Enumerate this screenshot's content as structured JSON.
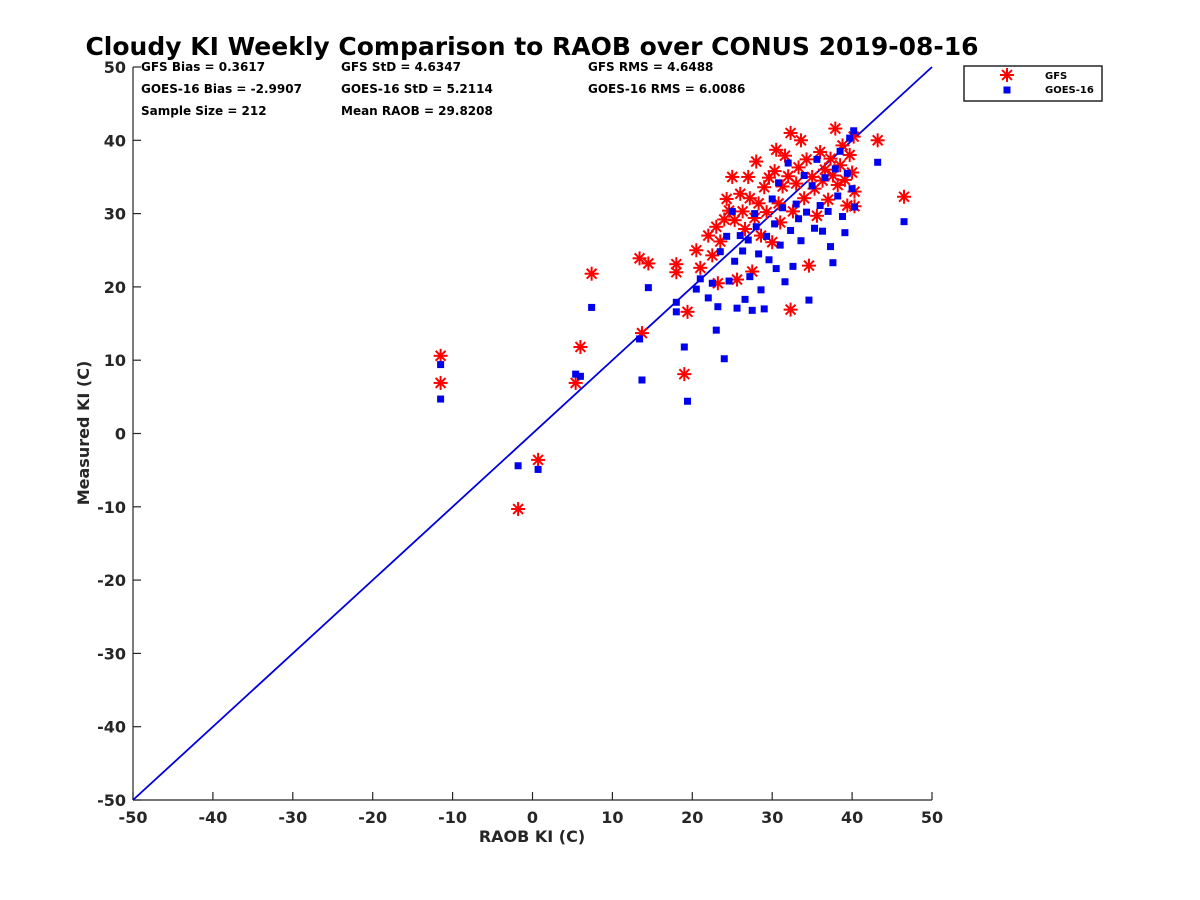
{
  "chart_data": {
    "type": "scatter",
    "title": "Cloudy KI Weekly Comparison to RAOB over CONUS 2019-08-16",
    "xlabel": "RAOB KI (C)",
    "ylabel": "Measured KI (C)",
    "xlim": [
      -50,
      50
    ],
    "ylim": [
      -50,
      50
    ],
    "xticks": [
      -50,
      -40,
      -30,
      -20,
      -10,
      0,
      10,
      20,
      30,
      40,
      50
    ],
    "yticks": [
      -50,
      -40,
      -30,
      -20,
      -10,
      0,
      10,
      20,
      30,
      40,
      50
    ],
    "grid": false,
    "legend_position": "outside top-right",
    "reference_line": {
      "x": [
        -50,
        50
      ],
      "y": [
        -50,
        50
      ],
      "color": "#0000dd"
    },
    "stats": [
      "GFS Bias = 0.3617",
      "GFS StD = 4.6347",
      "GFS RMS = 4.6488",
      "GOES-16 Bias = -2.9907",
      "GOES-16 StD = 5.2114",
      "GOES-16 RMS = 6.0086",
      "Sample Size = 212",
      "Mean RAOB = 29.8208"
    ],
    "series": [
      {
        "name": "GFS",
        "marker": "asterisk",
        "color": "#ff0000",
        "points": [
          [
            -11.5,
            10.6
          ],
          [
            -11.5,
            6.9
          ],
          [
            -1.8,
            -10.3
          ],
          [
            0.7,
            -3.6
          ],
          [
            5.4,
            6.9
          ],
          [
            6.0,
            11.8
          ],
          [
            7.4,
            21.8
          ],
          [
            13.4,
            23.9
          ],
          [
            13.7,
            13.7
          ],
          [
            14.5,
            23.2
          ],
          [
            18.0,
            23.1
          ],
          [
            18.0,
            22.0
          ],
          [
            19.0,
            8.1
          ],
          [
            19.4,
            16.6
          ],
          [
            20.5,
            25.0
          ],
          [
            21.0,
            22.6
          ],
          [
            22.0,
            27.0
          ],
          [
            22.5,
            24.3
          ],
          [
            23.0,
            28.2
          ],
          [
            23.2,
            20.5
          ],
          [
            23.5,
            26.2
          ],
          [
            24.0,
            29.2
          ],
          [
            24.3,
            32.0
          ],
          [
            24.6,
            30.4
          ],
          [
            25.0,
            35.0
          ],
          [
            25.3,
            29.1
          ],
          [
            25.6,
            21.0
          ],
          [
            26.0,
            32.7
          ],
          [
            26.3,
            30.3
          ],
          [
            26.6,
            27.9
          ],
          [
            27.0,
            35.0
          ],
          [
            27.2,
            32.1
          ],
          [
            27.5,
            22.1
          ],
          [
            27.8,
            29.4
          ],
          [
            28.0,
            37.1
          ],
          [
            28.3,
            31.4
          ],
          [
            28.6,
            27.0
          ],
          [
            29.0,
            33.6
          ],
          [
            29.3,
            30.2
          ],
          [
            29.6,
            34.9
          ],
          [
            30.0,
            26.1
          ],
          [
            30.3,
            35.8
          ],
          [
            30.5,
            38.7
          ],
          [
            30.8,
            31.4
          ],
          [
            31.0,
            28.8
          ],
          [
            31.3,
            33.7
          ],
          [
            31.6,
            37.9
          ],
          [
            32.0,
            35.1
          ],
          [
            32.3,
            41.0
          ],
          [
            32.3,
            16.9
          ],
          [
            32.6,
            30.3
          ],
          [
            33.0,
            34.1
          ],
          [
            33.3,
            36.3
          ],
          [
            33.6,
            40.0
          ],
          [
            34.0,
            32.1
          ],
          [
            34.3,
            37.4
          ],
          [
            34.6,
            22.9
          ],
          [
            35.0,
            35.0
          ],
          [
            35.3,
            33.4
          ],
          [
            35.6,
            29.7
          ],
          [
            36.0,
            38.4
          ],
          [
            36.3,
            34.5
          ],
          [
            36.6,
            36.0
          ],
          [
            37.0,
            31.9
          ],
          [
            37.3,
            37.5
          ],
          [
            37.6,
            35.2
          ],
          [
            37.9,
            41.6
          ],
          [
            38.2,
            33.9
          ],
          [
            38.5,
            36.6
          ],
          [
            38.8,
            39.3
          ],
          [
            39.1,
            34.6
          ],
          [
            39.4,
            31.1
          ],
          [
            39.7,
            38.0
          ],
          [
            40.0,
            35.6
          ],
          [
            40.2,
            40.5
          ],
          [
            40.3,
            33.0
          ],
          [
            40.3,
            31.0
          ],
          [
            43.2,
            40.0
          ],
          [
            46.5,
            32.3
          ]
        ]
      },
      {
        "name": "GOES-16",
        "marker": "square",
        "color": "#0000ee",
        "points": [
          [
            -11.5,
            9.4
          ],
          [
            -11.5,
            4.7
          ],
          [
            -1.8,
            -4.4
          ],
          [
            0.7,
            -4.9
          ],
          [
            5.4,
            8.1
          ],
          [
            6.0,
            7.8
          ],
          [
            7.4,
            17.2
          ],
          [
            13.4,
            12.9
          ],
          [
            13.7,
            7.3
          ],
          [
            14.5,
            19.9
          ],
          [
            18.0,
            17.9
          ],
          [
            18.0,
            16.6
          ],
          [
            19.0,
            11.8
          ],
          [
            19.4,
            4.4
          ],
          [
            20.5,
            19.7
          ],
          [
            21.0,
            21.1
          ],
          [
            22.0,
            18.5
          ],
          [
            22.5,
            20.5
          ],
          [
            23.0,
            14.1
          ],
          [
            23.2,
            17.3
          ],
          [
            23.5,
            24.8
          ],
          [
            24.0,
            10.2
          ],
          [
            24.3,
            26.9
          ],
          [
            24.6,
            20.8
          ],
          [
            25.0,
            30.3
          ],
          [
            25.3,
            23.5
          ],
          [
            25.6,
            17.1
          ],
          [
            26.0,
            27.0
          ],
          [
            26.3,
            24.9
          ],
          [
            26.6,
            18.3
          ],
          [
            27.0,
            26.4
          ],
          [
            27.2,
            21.4
          ],
          [
            27.5,
            16.8
          ],
          [
            27.8,
            30.0
          ],
          [
            28.0,
            28.2
          ],
          [
            28.3,
            24.5
          ],
          [
            28.6,
            19.6
          ],
          [
            29.0,
            17.0
          ],
          [
            29.3,
            26.9
          ],
          [
            29.6,
            23.7
          ],
          [
            30.0,
            32.0
          ],
          [
            30.3,
            28.6
          ],
          [
            30.5,
            22.5
          ],
          [
            30.8,
            34.2
          ],
          [
            31.0,
            25.7
          ],
          [
            31.3,
            30.8
          ],
          [
            31.6,
            20.7
          ],
          [
            32.0,
            36.9
          ],
          [
            32.3,
            27.7
          ],
          [
            32.6,
            22.8
          ],
          [
            33.0,
            31.3
          ],
          [
            33.3,
            29.3
          ],
          [
            33.6,
            26.3
          ],
          [
            34.0,
            35.2
          ],
          [
            34.3,
            30.2
          ],
          [
            34.6,
            18.2
          ],
          [
            35.0,
            33.8
          ],
          [
            35.3,
            28.0
          ],
          [
            35.6,
            37.4
          ],
          [
            36.0,
            31.1
          ],
          [
            36.3,
            27.6
          ],
          [
            36.6,
            34.9
          ],
          [
            37.0,
            30.3
          ],
          [
            37.3,
            25.5
          ],
          [
            37.6,
            23.3
          ],
          [
            37.9,
            36.1
          ],
          [
            38.2,
            32.4
          ],
          [
            38.5,
            38.5
          ],
          [
            38.8,
            29.6
          ],
          [
            39.1,
            27.4
          ],
          [
            39.4,
            35.5
          ],
          [
            39.7,
            40.3
          ],
          [
            40.0,
            33.4
          ],
          [
            40.2,
            41.3
          ],
          [
            40.3,
            30.9
          ],
          [
            43.2,
            37.0
          ],
          [
            46.5,
            28.9
          ]
        ]
      }
    ]
  }
}
